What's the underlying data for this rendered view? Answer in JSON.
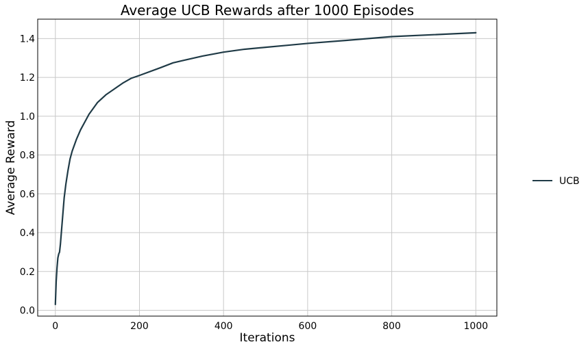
{
  "chart_data": {
    "type": "line",
    "title": "Average UCB Rewards after 1000 Episodes",
    "xlabel": "Iterations",
    "ylabel": "Average Reward",
    "xlim": [
      -42,
      1050
    ],
    "ylim": [
      -0.03,
      1.5
    ],
    "x_ticks": [
      0,
      200,
      400,
      600,
      800,
      1000
    ],
    "y_ticks": [
      0.0,
      0.2,
      0.4,
      0.6,
      0.8,
      1.0,
      1.2,
      1.4
    ],
    "x_tick_labels": [
      "0",
      "200",
      "400",
      "600",
      "800",
      "1000"
    ],
    "y_tick_labels": [
      "0.0",
      "0.2",
      "0.4",
      "0.6",
      "0.8",
      "1.0",
      "1.2",
      "1.4"
    ],
    "grid": true,
    "legend_position": "right",
    "series": [
      {
        "name": "UCB",
        "color": "#1f3a46",
        "x": [
          0,
          2,
          4,
          6,
          8,
          10,
          12,
          15,
          18,
          21,
          25,
          30,
          35,
          40,
          50,
          60,
          70,
          80,
          90,
          100,
          120,
          140,
          160,
          180,
          200,
          250,
          280,
          300,
          350,
          400,
          450,
          500,
          550,
          600,
          700,
          800,
          900,
          1000
        ],
        "y": [
          0.03,
          0.15,
          0.22,
          0.27,
          0.29,
          0.3,
          0.34,
          0.42,
          0.5,
          0.58,
          0.65,
          0.72,
          0.78,
          0.82,
          0.88,
          0.93,
          0.97,
          1.01,
          1.04,
          1.07,
          1.11,
          1.14,
          1.17,
          1.195,
          1.21,
          1.25,
          1.275,
          1.285,
          1.31,
          1.33,
          1.345,
          1.355,
          1.365,
          1.375,
          1.392,
          1.41,
          1.42,
          1.43
        ]
      }
    ]
  }
}
